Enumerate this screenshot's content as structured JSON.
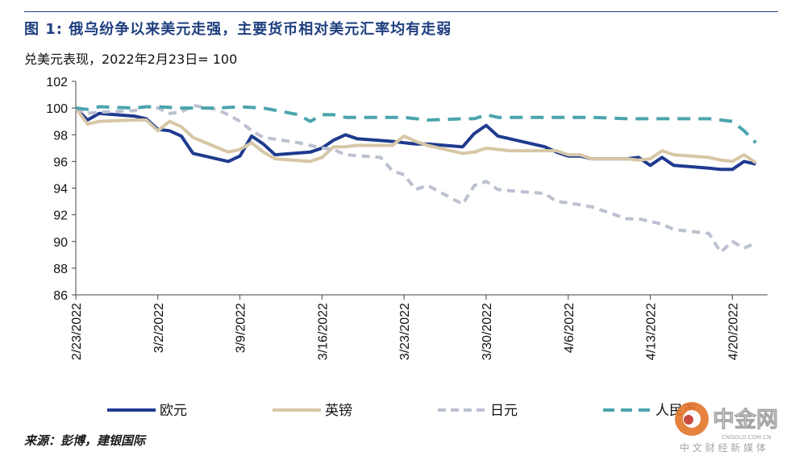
{
  "header": {
    "title": "图 1: 俄乌纷争以来美元走强，主要货币相对美元汇率均有走弱",
    "subtitle": "兑美元表现，2022年2月23日= 100"
  },
  "source": "来源：彭博，建银国际",
  "watermark": {
    "brand": "中金网",
    "site": "CNGOLD.COM.CN",
    "tagline": "中 文 财 经 新 媒 体"
  },
  "colors": {
    "euro": "#1f3b8f",
    "gbp": "#d7c7a6",
    "jpy": "#bcc1d1",
    "cny": "#4aa4ad",
    "title": "#1f3f7f"
  },
  "chart_data": {
    "type": "line",
    "title": "图 1: 俄乌纷争以来美元走强，主要货币相对美元汇率均有走弱",
    "subtitle": "兑美元表现，2022年2月23日= 100",
    "ylim": [
      86,
      102
    ],
    "yticks": [
      86,
      88,
      90,
      92,
      94,
      96,
      98,
      100,
      102
    ],
    "xlim": [
      "2022-02-23",
      "2022-04-23"
    ],
    "xticks": [
      {
        "date": "2022-02-23",
        "label": "2/23/2022"
      },
      {
        "date": "2022-03-02",
        "label": "3/2/2022"
      },
      {
        "date": "2022-03-09",
        "label": "3/9/2022"
      },
      {
        "date": "2022-03-16",
        "label": "3/16/2022"
      },
      {
        "date": "2022-03-23",
        "label": "3/23/2022"
      },
      {
        "date": "2022-03-30",
        "label": "3/30/2022"
      },
      {
        "date": "2022-04-06",
        "label": "4/6/2022"
      },
      {
        "date": "2022-04-13",
        "label": "4/13/2022"
      },
      {
        "date": "2022-04-20",
        "label": "4/20/2022"
      }
    ],
    "grid": false,
    "legend": "bottom",
    "series": [
      {
        "name": "欧元",
        "style": "solid",
        "color": "#1f3b8f",
        "points": [
          [
            "2022-02-23",
            100.0
          ],
          [
            "2022-02-24",
            99.1
          ],
          [
            "2022-02-25",
            99.6
          ],
          [
            "2022-02-28",
            99.4
          ],
          [
            "2022-03-01",
            99.2
          ],
          [
            "2022-03-02",
            98.4
          ],
          [
            "2022-03-03",
            98.3
          ],
          [
            "2022-03-04",
            97.9
          ],
          [
            "2022-03-05",
            96.6
          ],
          [
            "2022-03-08",
            96.0
          ],
          [
            "2022-03-09",
            96.4
          ],
          [
            "2022-03-10",
            97.9
          ],
          [
            "2022-03-11",
            97.3
          ],
          [
            "2022-03-12",
            96.5
          ],
          [
            "2022-03-15",
            96.7
          ],
          [
            "2022-03-16",
            97.0
          ],
          [
            "2022-03-17",
            97.6
          ],
          [
            "2022-03-18",
            98.0
          ],
          [
            "2022-03-19",
            97.7
          ],
          [
            "2022-03-22",
            97.5
          ],
          [
            "2022-03-23",
            97.4
          ],
          [
            "2022-03-24",
            97.3
          ],
          [
            "2022-03-25",
            97.3
          ],
          [
            "2022-03-28",
            97.1
          ],
          [
            "2022-03-29",
            98.1
          ],
          [
            "2022-03-30",
            98.7
          ],
          [
            "2022-03-31",
            97.9
          ],
          [
            "2022-04-01",
            97.7
          ],
          [
            "2022-04-04",
            97.1
          ],
          [
            "2022-04-05",
            96.7
          ],
          [
            "2022-04-06",
            96.4
          ],
          [
            "2022-04-07",
            96.4
          ],
          [
            "2022-04-08",
            96.2
          ],
          [
            "2022-04-11",
            96.2
          ],
          [
            "2022-04-12",
            96.3
          ],
          [
            "2022-04-13",
            95.7
          ],
          [
            "2022-04-14",
            96.3
          ],
          [
            "2022-04-15",
            95.7
          ],
          [
            "2022-04-18",
            95.5
          ],
          [
            "2022-04-19",
            95.4
          ],
          [
            "2022-04-20",
            95.4
          ],
          [
            "2022-04-21",
            96.0
          ],
          [
            "2022-04-22",
            95.8
          ]
        ]
      },
      {
        "name": "英镑",
        "style": "solid",
        "color": "#d7c7a6",
        "points": [
          [
            "2022-02-23",
            100.0
          ],
          [
            "2022-02-24",
            98.8
          ],
          [
            "2022-02-25",
            99.0
          ],
          [
            "2022-02-28",
            99.1
          ],
          [
            "2022-03-01",
            99.1
          ],
          [
            "2022-03-02",
            98.3
          ],
          [
            "2022-03-03",
            99.0
          ],
          [
            "2022-03-04",
            98.6
          ],
          [
            "2022-03-05",
            97.8
          ],
          [
            "2022-03-08",
            96.7
          ],
          [
            "2022-03-09",
            96.9
          ],
          [
            "2022-03-10",
            97.4
          ],
          [
            "2022-03-11",
            96.7
          ],
          [
            "2022-03-12",
            96.2
          ],
          [
            "2022-03-15",
            96.0
          ],
          [
            "2022-03-16",
            96.3
          ],
          [
            "2022-03-17",
            97.1
          ],
          [
            "2022-03-18",
            97.1
          ],
          [
            "2022-03-19",
            97.2
          ],
          [
            "2022-03-22",
            97.2
          ],
          [
            "2022-03-23",
            97.9
          ],
          [
            "2022-03-24",
            97.5
          ],
          [
            "2022-03-25",
            97.2
          ],
          [
            "2022-03-28",
            96.6
          ],
          [
            "2022-03-29",
            96.7
          ],
          [
            "2022-03-30",
            97.0
          ],
          [
            "2022-03-31",
            96.9
          ],
          [
            "2022-04-01",
            96.8
          ],
          [
            "2022-04-04",
            96.8
          ],
          [
            "2022-04-05",
            96.8
          ],
          [
            "2022-04-06",
            96.5
          ],
          [
            "2022-04-07",
            96.5
          ],
          [
            "2022-04-08",
            96.2
          ],
          [
            "2022-04-11",
            96.2
          ],
          [
            "2022-04-12",
            96.1
          ],
          [
            "2022-04-13",
            96.2
          ],
          [
            "2022-04-14",
            96.8
          ],
          [
            "2022-04-15",
            96.5
          ],
          [
            "2022-04-18",
            96.3
          ],
          [
            "2022-04-19",
            96.1
          ],
          [
            "2022-04-20",
            96.0
          ],
          [
            "2022-04-21",
            96.5
          ],
          [
            "2022-04-22",
            95.9
          ]
        ]
      },
      {
        "name": "日元",
        "style": "dashed",
        "color": "#bcc1d1",
        "points": [
          [
            "2022-02-23",
            100.0
          ],
          [
            "2022-02-24",
            99.6
          ],
          [
            "2022-02-25",
            99.7
          ],
          [
            "2022-02-28",
            99.8
          ],
          [
            "2022-03-01",
            100.1
          ],
          [
            "2022-03-02",
            100.0
          ],
          [
            "2022-03-03",
            99.6
          ],
          [
            "2022-03-04",
            99.7
          ],
          [
            "2022-03-05",
            100.2
          ],
          [
            "2022-03-07",
            99.9
          ],
          [
            "2022-03-08",
            99.5
          ],
          [
            "2022-03-09",
            99.0
          ],
          [
            "2022-03-10",
            98.3
          ],
          [
            "2022-03-11",
            97.8
          ],
          [
            "2022-03-14",
            97.4
          ],
          [
            "2022-03-16",
            97.0
          ],
          [
            "2022-03-17",
            96.9
          ],
          [
            "2022-03-18",
            96.5
          ],
          [
            "2022-03-21",
            96.3
          ],
          [
            "2022-03-22",
            95.3
          ],
          [
            "2022-03-23",
            95.0
          ],
          [
            "2022-03-24",
            93.9
          ],
          [
            "2022-03-25",
            94.2
          ],
          [
            "2022-03-28",
            92.8
          ],
          [
            "2022-03-29",
            94.2
          ],
          [
            "2022-03-30",
            94.5
          ],
          [
            "2022-03-31",
            93.9
          ],
          [
            "2022-04-01",
            93.8
          ],
          [
            "2022-04-04",
            93.6
          ],
          [
            "2022-04-05",
            93.0
          ],
          [
            "2022-04-06",
            92.9
          ],
          [
            "2022-04-08",
            92.6
          ],
          [
            "2022-04-11",
            91.7
          ],
          [
            "2022-04-12",
            91.7
          ],
          [
            "2022-04-13",
            91.5
          ],
          [
            "2022-04-14",
            91.3
          ],
          [
            "2022-04-15",
            90.9
          ],
          [
            "2022-04-18",
            90.6
          ],
          [
            "2022-04-19",
            89.2
          ],
          [
            "2022-04-20",
            90.0
          ],
          [
            "2022-04-21",
            89.5
          ],
          [
            "2022-04-22",
            89.9
          ]
        ]
      },
      {
        "name": "人民币",
        "style": "dashed",
        "color": "#4aa4ad",
        "points": [
          [
            "2022-02-23",
            100.0
          ],
          [
            "2022-02-24",
            99.9
          ],
          [
            "2022-02-25",
            100.1
          ],
          [
            "2022-02-28",
            100.0
          ],
          [
            "2022-03-01",
            100.1
          ],
          [
            "2022-03-02",
            100.1
          ],
          [
            "2022-03-04",
            100.0
          ],
          [
            "2022-03-07",
            100.0
          ],
          [
            "2022-03-09",
            100.1
          ],
          [
            "2022-03-11",
            100.0
          ],
          [
            "2022-03-14",
            99.5
          ],
          [
            "2022-03-15",
            99.0
          ],
          [
            "2022-03-16",
            99.5
          ],
          [
            "2022-03-17",
            99.5
          ],
          [
            "2022-03-18",
            99.3
          ],
          [
            "2022-03-21",
            99.3
          ],
          [
            "2022-03-23",
            99.3
          ],
          [
            "2022-03-25",
            99.1
          ],
          [
            "2022-03-28",
            99.2
          ],
          [
            "2022-03-29",
            99.2
          ],
          [
            "2022-03-30",
            99.5
          ],
          [
            "2022-03-31",
            99.3
          ],
          [
            "2022-04-01",
            99.3
          ],
          [
            "2022-04-04",
            99.3
          ],
          [
            "2022-04-06",
            99.3
          ],
          [
            "2022-04-08",
            99.3
          ],
          [
            "2022-04-11",
            99.2
          ],
          [
            "2022-04-13",
            99.2
          ],
          [
            "2022-04-15",
            99.2
          ],
          [
            "2022-04-18",
            99.2
          ],
          [
            "2022-04-19",
            99.1
          ],
          [
            "2022-04-20",
            99.0
          ],
          [
            "2022-04-21",
            98.3
          ],
          [
            "2022-04-22",
            97.4
          ]
        ]
      }
    ]
  }
}
